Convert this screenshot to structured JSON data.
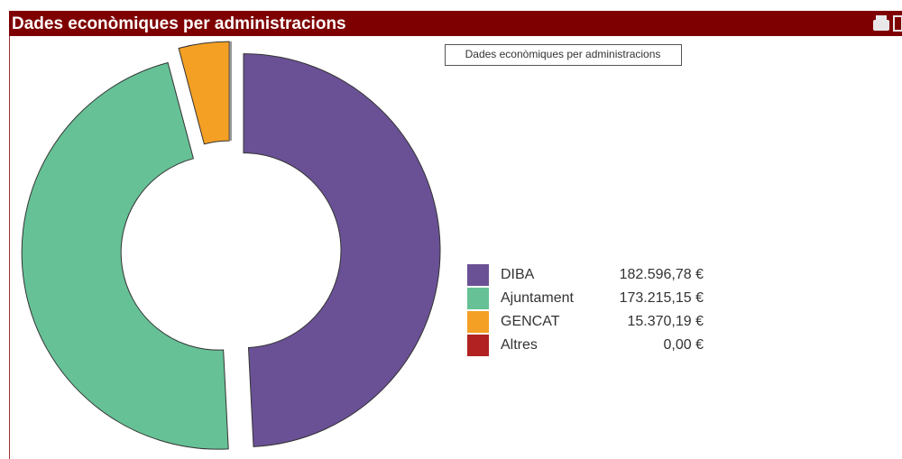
{
  "chart_data": {
    "type": "donut",
    "title": "Dades econòmiques per administracions",
    "tooltip": "Dades econòmiques per administracions",
    "categories": [
      "DIBA",
      "Ajuntament",
      "GENCAT",
      "Altres"
    ],
    "values": [
      182596.78,
      173215.15,
      15370.19,
      0
    ],
    "value_labels": [
      "182.596,78 €",
      "173.215,15 €",
      "15.370,19 €",
      "0,00 €"
    ],
    "colors": [
      "#6a5196",
      "#66c196",
      "#f4a024",
      "#b22222"
    ],
    "legend": "right"
  }
}
